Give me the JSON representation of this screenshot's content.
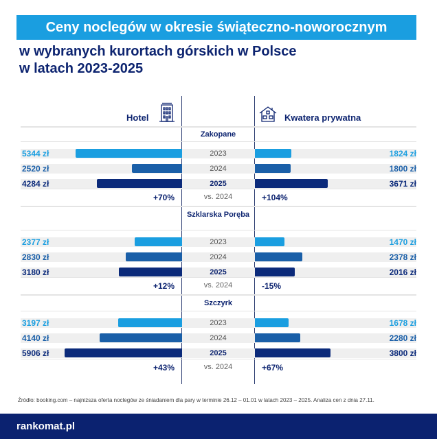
{
  "title": "Ceny noclegów w okresie świąteczno-noworocznym",
  "subtitle_line1": "w wybranych kurortach górskich w Polsce",
  "subtitle_line2": "w latach 2023-2025",
  "columns": {
    "left": "Hotel",
    "right": "Kwatera prywatna",
    "left_icon": "hotel-building-icon",
    "right_icon": "house-icon"
  },
  "colors": {
    "2023": "#1a9ee0",
    "2024": "#1a5fa8",
    "2025": "#0b2a7a"
  },
  "chart_data": {
    "type": "bar",
    "orientation": "horizontal-diverging",
    "unit": "zł",
    "years": [
      "2023",
      "2024",
      "2025"
    ],
    "comparison_label": "vs. 2024",
    "groups": [
      {
        "city": "Zakopane",
        "hotel": [
          5344,
          2520,
          4284
        ],
        "private": [
          1824,
          1800,
          3671
        ],
        "hotel_labels": [
          "5344 zł",
          "2520 zł",
          "4284 zł"
        ],
        "private_labels": [
          "1824 zł",
          "1800 zł",
          "3671 zł"
        ],
        "hotel_change": "+70%",
        "private_change": "+104%"
      },
      {
        "city": "Szklarska Poręba",
        "hotel": [
          2377,
          2830,
          3180
        ],
        "private": [
          1470,
          2378,
          2016
        ],
        "hotel_labels": [
          "2377 zł",
          "2830 zł",
          "3180 zł"
        ],
        "private_labels": [
          "1470 zł",
          "2378 zł",
          "2016 zł"
        ],
        "hotel_change": "+12%",
        "private_change": "-15%"
      },
      {
        "city": "Szczyrk",
        "hotel": [
          3197,
          4140,
          5906
        ],
        "private": [
          1678,
          2280,
          3800
        ],
        "hotel_labels": [
          "3197 zł",
          "4140 zł",
          "5906 zł"
        ],
        "private_labels": [
          "1678 zł",
          "2280 zł",
          "3800 zł"
        ],
        "hotel_change": "+43%",
        "private_change": "+67%"
      }
    ]
  },
  "source": "Źródło: booking.com – najniższa oferta noclegów ze śniadaniem dla pary w terminie 26.12 – 01.01 w latach 2023 – 2025. Analiza cen z dnia 27.11.",
  "logo": "rankomat.pl"
}
